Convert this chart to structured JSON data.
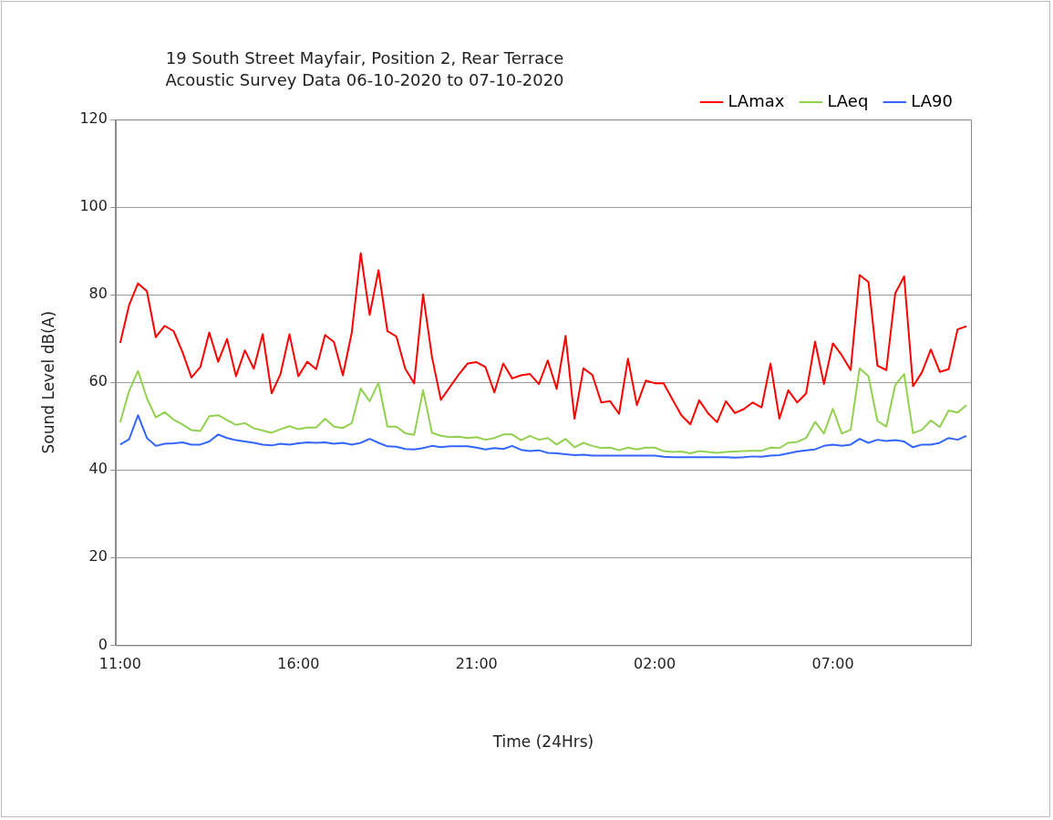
{
  "chart_data": {
    "type": "line",
    "title": "19 South Street Mayfair, Position 2, Rear Terrace",
    "subtitle": "Acoustic Survey Data 06-10-2020 to 07-10-2020",
    "xlabel": "Time (24Hrs)",
    "ylabel": "Sound Level dB(A)",
    "categories": [
      "11:00",
      null,
      null,
      null,
      null,
      null,
      null,
      null,
      null,
      null,
      null,
      null,
      null,
      null,
      null,
      null,
      null,
      null,
      null,
      null,
      "16:00",
      null,
      null,
      null,
      null,
      null,
      null,
      null,
      null,
      null,
      null,
      null,
      null,
      null,
      null,
      null,
      null,
      null,
      null,
      null,
      "21:00",
      null,
      null,
      null,
      null,
      null,
      null,
      null,
      null,
      null,
      null,
      null,
      null,
      null,
      null,
      null,
      null,
      null,
      null,
      null,
      "02:00",
      null,
      null,
      null,
      null,
      null,
      null,
      null,
      null,
      null,
      null,
      null,
      null,
      null,
      null,
      null,
      null,
      null,
      null,
      null,
      "07:00",
      null,
      null,
      null,
      null,
      null,
      null,
      null,
      null,
      null,
      null,
      null,
      null,
      null,
      null,
      null
    ],
    "series": [
      {
        "name": "LAmax",
        "color": "#ff0000",
        "values": [
          69.0,
          77.6,
          82.6,
          80.8,
          70.3,
          72.9,
          71.7,
          66.9,
          61.1,
          63.5,
          71.4,
          64.7,
          69.9,
          61.4,
          67.3,
          63.1,
          71.0,
          57.5,
          61.9,
          71.0,
          61.4,
          64.7,
          63.0,
          70.8,
          69.2,
          61.6,
          71.4,
          89.5,
          75.4,
          85.6,
          71.7,
          70.5,
          63.1,
          59.8,
          80.1,
          65.8,
          56.0,
          58.9,
          61.8,
          64.3,
          64.6,
          63.5,
          57.7,
          64.3,
          60.9,
          61.6,
          61.9,
          59.6,
          65.0,
          58.5,
          70.6,
          51.7,
          63.2,
          61.7,
          55.4,
          55.7,
          52.8,
          65.4,
          54.8,
          60.4,
          59.8,
          59.8,
          56.1,
          52.5,
          50.4,
          55.9,
          52.9,
          50.9,
          55.7,
          53.0,
          53.9,
          55.4,
          54.3,
          64.3,
          51.7,
          58.2,
          55.4,
          57.5,
          69.3,
          59.6,
          68.9,
          66.2,
          62.8,
          84.5,
          82.9,
          63.8,
          62.8,
          80.3,
          84.2,
          59.1,
          62.3,
          67.5,
          62.4,
          63.0,
          72.1,
          72.8
        ]
      },
      {
        "name": "LAeq",
        "color": "#92d050",
        "values": [
          50.9,
          58.0,
          62.6,
          56.4,
          52.0,
          53.2,
          51.5,
          50.4,
          49.1,
          48.9,
          52.3,
          52.5,
          51.4,
          50.3,
          50.7,
          49.5,
          49.0,
          48.5,
          49.3,
          50.0,
          49.3,
          49.7,
          49.7,
          51.7,
          49.9,
          49.6,
          50.7,
          58.6,
          55.7,
          59.9,
          49.9,
          49.9,
          48.4,
          48.0,
          58.2,
          48.5,
          47.8,
          47.5,
          47.6,
          47.3,
          47.5,
          46.9,
          47.3,
          48.1,
          48.1,
          46.8,
          47.8,
          46.9,
          47.3,
          45.8,
          47.1,
          45.2,
          46.2,
          45.5,
          45.0,
          45.1,
          44.5,
          45.1,
          44.7,
          45.1,
          45.1,
          44.3,
          44.1,
          44.2,
          43.8,
          44.3,
          44.1,
          43.9,
          44.1,
          44.2,
          44.3,
          44.4,
          44.4,
          45.1,
          45.0,
          46.2,
          46.4,
          47.3,
          51.0,
          48.3,
          54.0,
          48.3,
          49.2,
          63.2,
          61.4,
          51.2,
          49.9,
          59.4,
          61.9,
          48.4,
          49.2,
          51.3,
          49.8,
          53.6,
          53.1,
          54.8
        ]
      },
      {
        "name": "LA90",
        "color": "#3366ff",
        "values": [
          45.8,
          47.0,
          52.5,
          47.3,
          45.5,
          46.0,
          46.1,
          46.3,
          45.8,
          45.8,
          46.5,
          48.1,
          47.3,
          46.8,
          46.5,
          46.2,
          45.8,
          45.6,
          46.0,
          45.8,
          46.1,
          46.3,
          46.2,
          46.3,
          46.0,
          46.2,
          45.8,
          46.2,
          47.1,
          46.2,
          45.4,
          45.3,
          44.8,
          44.7,
          45.0,
          45.5,
          45.2,
          45.4,
          45.4,
          45.4,
          45.1,
          44.7,
          45.0,
          44.8,
          45.5,
          44.6,
          44.3,
          44.5,
          43.9,
          43.8,
          43.6,
          43.4,
          43.5,
          43.3,
          43.3,
          43.3,
          43.3,
          43.3,
          43.3,
          43.3,
          43.3,
          43.0,
          42.9,
          42.9,
          42.9,
          42.9,
          42.9,
          42.9,
          42.9,
          42.8,
          42.9,
          43.1,
          43.0,
          43.3,
          43.4,
          43.8,
          44.2,
          44.5,
          44.7,
          45.5,
          45.8,
          45.5,
          45.8,
          47.1,
          46.2,
          46.9,
          46.6,
          46.8,
          46.5,
          45.2,
          45.8,
          45.8,
          46.2,
          47.3,
          46.9,
          47.8
        ]
      }
    ],
    "ylim": [
      0,
      120
    ],
    "yticks": [
      0,
      20,
      40,
      60,
      80,
      100,
      120
    ],
    "grid": "y",
    "legend": "top right",
    "marker": "none"
  }
}
